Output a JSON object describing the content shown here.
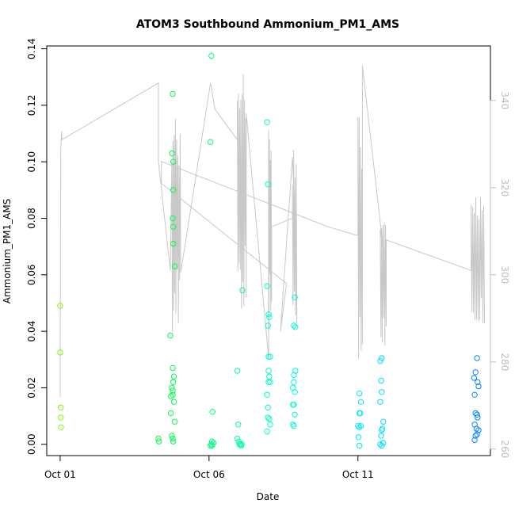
{
  "chart_data": {
    "type": "scatter",
    "title": "ATOM3 Southbound Ammonium_PM1_AMS",
    "xlabel": "Date",
    "ylabel": "Ammonium_PM1_AMS",
    "x_ticks": [
      "Oct 01",
      "Oct 06",
      "Oct 11"
    ],
    "x_tick_days": [
      1,
      6,
      11
    ],
    "xlim_days": [
      0.55,
      15.45
    ],
    "ylim": [
      -0.004,
      0.141
    ],
    "y_ticks": [
      0.0,
      0.02,
      0.04,
      0.06,
      0.08,
      0.1,
      0.12,
      0.14
    ],
    "y_tick_labels": [
      "0.00",
      "0.02",
      "0.04",
      "0.06",
      "0.08",
      "0.10",
      "0.12",
      "0.14"
    ],
    "y2_ticks": [
      260,
      280,
      300,
      320,
      340
    ],
    "y2lim": [
      258.5,
      352.5
    ],
    "grid": false,
    "legend": "none",
    "colors": {
      "line": "#c8c8c8",
      "axis": "#000000",
      "axis_right": "#bdbdbd",
      "gradient": [
        "#80ff00",
        "#00ff40",
        "#00ffcc",
        "#00e5ff",
        "#0080ff"
      ]
    },
    "series": [
      {
        "points": [
          [
            1.0,
            0.049
          ],
          [
            1.0,
            0.0325
          ],
          [
            1.02,
            0.013
          ],
          [
            1.02,
            0.0095
          ],
          [
            1.03,
            0.006
          ],
          [
            4.3,
            0.002
          ],
          [
            4.32,
            0.001
          ],
          [
            4.78,
            0.124
          ],
          [
            4.76,
            0.103
          ],
          [
            4.8,
            0.1
          ],
          [
            4.8,
            0.09
          ],
          [
            4.78,
            0.08
          ],
          [
            4.8,
            0.077
          ],
          [
            4.8,
            0.071
          ],
          [
            4.85,
            0.063
          ],
          [
            4.7,
            0.0385
          ],
          [
            4.78,
            0.027
          ],
          [
            4.82,
            0.024
          ],
          [
            4.8,
            0.022
          ],
          [
            4.78,
            0.019
          ],
          [
            4.82,
            0.015
          ],
          [
            4.75,
            0.02
          ],
          [
            4.72,
            0.017
          ],
          [
            4.78,
            0.0175
          ],
          [
            4.72,
            0.011
          ],
          [
            4.85,
            0.008
          ],
          [
            4.75,
            0.003
          ],
          [
            4.78,
            0.002
          ],
          [
            4.8,
            0.001
          ],
          [
            6.08,
            0.1375
          ],
          [
            6.05,
            0.107
          ],
          [
            6.12,
            0.0115
          ],
          [
            6.1,
            0.001
          ],
          [
            6.05,
            -0.0005
          ],
          [
            6.08,
            0.0
          ],
          [
            6.1,
            -0.0005
          ],
          [
            6.15,
            0.0005
          ],
          [
            6.95,
            0.026
          ],
          [
            7.12,
            0.0545
          ],
          [
            6.98,
            0.007
          ],
          [
            6.95,
            0.002
          ],
          [
            7.0,
            0.001
          ],
          [
            7.05,
            0.0
          ],
          [
            7.08,
            -0.0005
          ],
          [
            7.1,
            0.0
          ],
          [
            7.02,
            0.0
          ],
          [
            7.95,
            0.114
          ],
          [
            7.98,
            0.092
          ],
          [
            7.95,
            0.056
          ],
          [
            8.0,
            0.046
          ],
          [
            8.02,
            0.045
          ],
          [
            7.98,
            0.042
          ],
          [
            8.0,
            0.031
          ],
          [
            8.05,
            0.031
          ],
          [
            8.0,
            0.026
          ],
          [
            8.02,
            0.024
          ],
          [
            8.0,
            0.022
          ],
          [
            8.05,
            0.022
          ],
          [
            7.95,
            0.0175
          ],
          [
            7.98,
            0.013
          ],
          [
            8.02,
            0.009
          ],
          [
            8.05,
            0.007
          ],
          [
            7.95,
            0.0045
          ],
          [
            7.98,
            0.0095
          ],
          [
            8.88,
            0.052
          ],
          [
            8.85,
            0.042
          ],
          [
            8.9,
            0.0415
          ],
          [
            8.85,
            0.0245
          ],
          [
            8.9,
            0.026
          ],
          [
            8.85,
            0.022
          ],
          [
            8.82,
            0.02
          ],
          [
            8.88,
            0.0185
          ],
          [
            8.82,
            0.014
          ],
          [
            8.85,
            0.014
          ],
          [
            8.88,
            0.0105
          ],
          [
            8.82,
            0.007
          ],
          [
            8.85,
            0.0065
          ],
          [
            11.05,
            0.018
          ],
          [
            11.1,
            0.015
          ],
          [
            11.05,
            0.011
          ],
          [
            11.08,
            0.011
          ],
          [
            11.0,
            0.0065
          ],
          [
            11.05,
            0.006
          ],
          [
            11.1,
            0.0065
          ],
          [
            11.02,
            0.0025
          ],
          [
            11.05,
            -0.0005
          ],
          [
            11.8,
            0.0305
          ],
          [
            11.75,
            0.0295
          ],
          [
            11.78,
            0.0225
          ],
          [
            11.8,
            0.0185
          ],
          [
            11.75,
            0.015
          ],
          [
            11.85,
            0.008
          ],
          [
            11.8,
            0.005
          ],
          [
            11.82,
            0.0055
          ],
          [
            11.78,
            0.003
          ],
          [
            11.85,
            0.0005
          ],
          [
            11.8,
            -0.0005
          ],
          [
            11.75,
            0.0
          ],
          [
            15.0,
            0.0305
          ],
          [
            14.9,
            0.0235
          ],
          [
            14.95,
            0.0255
          ],
          [
            15.02,
            0.022
          ],
          [
            15.05,
            0.0205
          ],
          [
            14.92,
            0.0175
          ],
          [
            14.95,
            0.011
          ],
          [
            15.0,
            0.0105
          ],
          [
            15.02,
            0.0095
          ],
          [
            14.92,
            0.007
          ],
          [
            14.98,
            0.0055
          ],
          [
            15.05,
            0.005
          ],
          [
            14.95,
            0.003
          ],
          [
            15.0,
            0.0035
          ],
          [
            14.92,
            0.0015
          ]
        ]
      }
    ]
  }
}
